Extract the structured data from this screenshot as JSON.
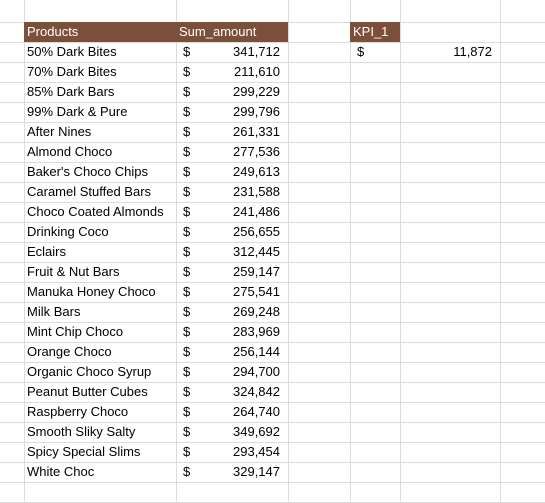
{
  "headers": {
    "products": "Products",
    "sum_amount": "Sum_amount",
    "kpi": "KPI_1"
  },
  "kpi": {
    "currency": "$",
    "value": "11,872"
  },
  "rows": [
    {
      "product": "50% Dark Bites",
      "currency": "$",
      "amount": "341,712"
    },
    {
      "product": "70% Dark Bites",
      "currency": "$",
      "amount": "211,610"
    },
    {
      "product": "85% Dark Bars",
      "currency": "$",
      "amount": "299,229"
    },
    {
      "product": "99% Dark & Pure",
      "currency": "$",
      "amount": "299,796"
    },
    {
      "product": "After Nines",
      "currency": "$",
      "amount": "261,331"
    },
    {
      "product": "Almond Choco",
      "currency": "$",
      "amount": "277,536"
    },
    {
      "product": "Baker's Choco Chips",
      "currency": "$",
      "amount": "249,613"
    },
    {
      "product": "Caramel Stuffed Bars",
      "currency": "$",
      "amount": "231,588"
    },
    {
      "product": "Choco Coated Almonds",
      "currency": "$",
      "amount": "241,486"
    },
    {
      "product": "Drinking Coco",
      "currency": "$",
      "amount": "256,655"
    },
    {
      "product": "Eclairs",
      "currency": "$",
      "amount": "312,445"
    },
    {
      "product": "Fruit & Nut Bars",
      "currency": "$",
      "amount": "259,147"
    },
    {
      "product": "Manuka Honey Choco",
      "currency": "$",
      "amount": "275,541"
    },
    {
      "product": "Milk Bars",
      "currency": "$",
      "amount": "269,248"
    },
    {
      "product": "Mint Chip Choco",
      "currency": "$",
      "amount": "283,969"
    },
    {
      "product": "Orange Choco",
      "currency": "$",
      "amount": "256,144"
    },
    {
      "product": "Organic Choco Syrup",
      "currency": "$",
      "amount": "294,700"
    },
    {
      "product": "Peanut Butter Cubes",
      "currency": "$",
      "amount": "324,842"
    },
    {
      "product": "Raspberry Choco",
      "currency": "$",
      "amount": "264,740"
    },
    {
      "product": "Smooth Sliky Salty",
      "currency": "$",
      "amount": "349,692"
    },
    {
      "product": "Spicy Special Slims",
      "currency": "$",
      "amount": "293,454"
    },
    {
      "product": "White Choc",
      "currency": "$",
      "amount": "329,147"
    }
  ]
}
